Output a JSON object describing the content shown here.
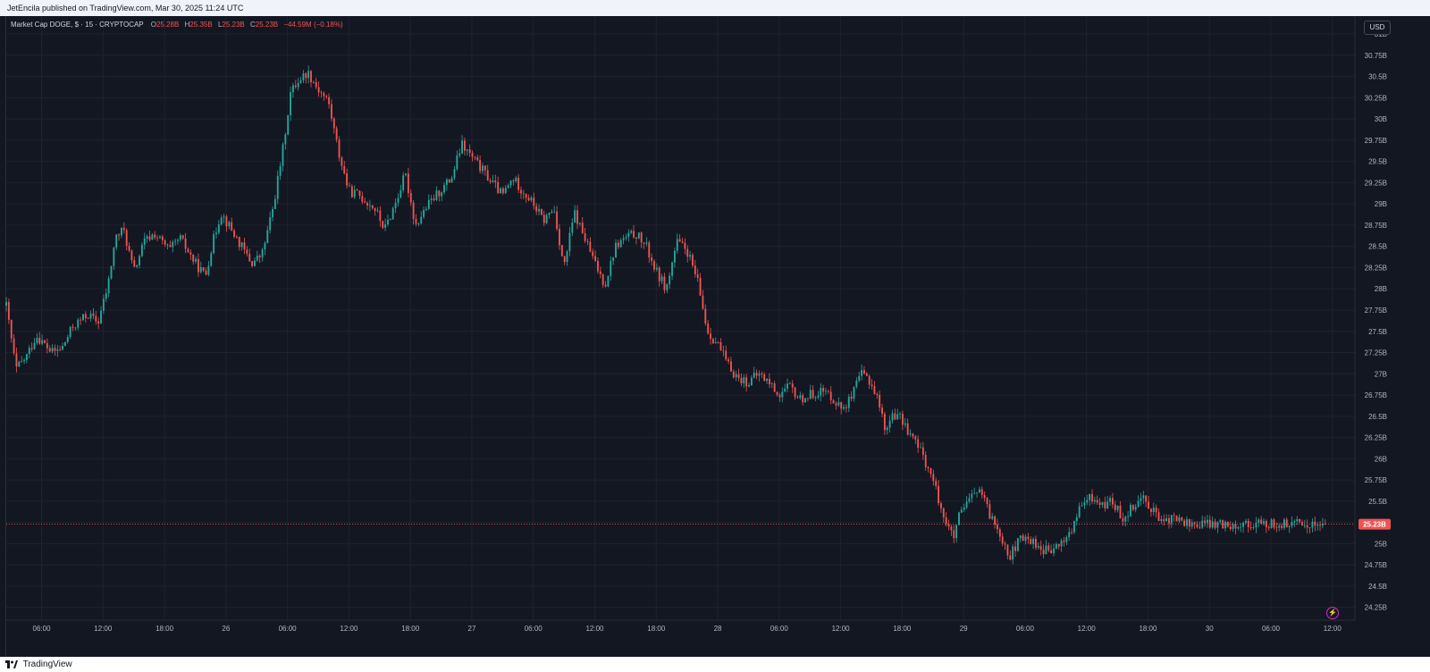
{
  "header": {
    "published_text": "JetEncila published on TradingView.com, Mar 30, 2025 11:24 UTC"
  },
  "legend": {
    "symbol": "Market Cap DOGE, $ · 15 · CRYPTOCAP",
    "o_label": "O",
    "o_value": "25.28B",
    "h_label": "H",
    "h_value": "25.35B",
    "l_label": "L",
    "l_value": "25.23B",
    "c_label": "C",
    "c_value": "25.23B",
    "change": "−44.59M (−0.18%)"
  },
  "currency": "USD",
  "footer": {
    "brand": "TradingView"
  },
  "colors": {
    "background": "#131722",
    "up": "#26a69a",
    "down": "#ef5350",
    "grid": "#1e222d",
    "text": "#b2b5be"
  },
  "chart_data": {
    "type": "candlestick",
    "series_name": "Market Cap DOGE, $",
    "interval": "15",
    "ylim": [
      24.1,
      31.2
    ],
    "y_ticks": [
      24.25,
      24.5,
      24.75,
      25,
      25.25,
      25.5,
      25.75,
      26,
      26.25,
      26.5,
      26.75,
      27,
      27.25,
      27.5,
      27.75,
      28,
      28.25,
      28.5,
      28.75,
      29,
      29.25,
      29.5,
      29.75,
      30,
      30.25,
      30.5,
      30.75,
      31
    ],
    "y_tick_labels": [
      "24.25B",
      "24.5B",
      "24.75B",
      "25B",
      "25.25B",
      "25.5B",
      "25.75B",
      "26B",
      "26.25B",
      "26.5B",
      "26.75B",
      "27B",
      "27.25B",
      "27.5B",
      "27.75B",
      "28B",
      "28.25B",
      "28.5B",
      "28.75B",
      "29B",
      "29.25B",
      "29.5B",
      "29.75B",
      "30B",
      "30.25B",
      "30.5B",
      "30.75B",
      "31B"
    ],
    "x_ticks": [
      {
        "label": "06:00",
        "t": 6
      },
      {
        "label": "12:00",
        "t": 12
      },
      {
        "label": "18:00",
        "t": 18
      },
      {
        "label": "26",
        "t": 24
      },
      {
        "label": "06:00",
        "t": 30
      },
      {
        "label": "12:00",
        "t": 36
      },
      {
        "label": "18:00",
        "t": 42
      },
      {
        "label": "27",
        "t": 48
      },
      {
        "label": "06:00",
        "t": 54
      },
      {
        "label": "12:00",
        "t": 60
      },
      {
        "label": "18:00",
        "t": 66
      },
      {
        "label": "28",
        "t": 72
      },
      {
        "label": "06:00",
        "t": 78
      },
      {
        "label": "12:00",
        "t": 84
      },
      {
        "label": "18:00",
        "t": 90
      },
      {
        "label": "29",
        "t": 96
      },
      {
        "label": "06:00",
        "t": 102
      },
      {
        "label": "12:00",
        "t": 108
      },
      {
        "label": "18:00",
        "t": 114
      },
      {
        "label": "30",
        "t": 120
      },
      {
        "label": "06:00",
        "t": 126
      },
      {
        "label": "12:00",
        "t": 132
      }
    ],
    "x_range_hours": [
      2.55,
      134.2
    ],
    "last_time_hours": 131.5,
    "last_price": 25.23,
    "last_price_label": "25.23B",
    "anchors": [
      [
        2.55,
        27.8
      ],
      [
        3.5,
        27.05
      ],
      [
        4.5,
        27.2
      ],
      [
        5.5,
        27.45
      ],
      [
        7,
        27.25
      ],
      [
        8,
        27.3
      ],
      [
        9,
        27.55
      ],
      [
        10.5,
        27.7
      ],
      [
        11.5,
        27.6
      ],
      [
        12.5,
        28.05
      ],
      [
        13.2,
        28.6
      ],
      [
        14,
        28.7
      ],
      [
        15,
        28.2
      ],
      [
        16,
        28.55
      ],
      [
        17,
        28.65
      ],
      [
        18.5,
        28.45
      ],
      [
        19.5,
        28.6
      ],
      [
        21,
        28.3
      ],
      [
        22,
        28.15
      ],
      [
        22.5,
        28.45
      ],
      [
        23.5,
        28.9
      ],
      [
        24.5,
        28.7
      ],
      [
        25.5,
        28.5
      ],
      [
        26.5,
        28.3
      ],
      [
        27.5,
        28.4
      ],
      [
        28.5,
        28.9
      ],
      [
        29.5,
        29.6
      ],
      [
        30.3,
        30.3
      ],
      [
        31,
        30.45
      ],
      [
        32,
        30.55
      ],
      [
        33,
        30.35
      ],
      [
        34,
        30.2
      ],
      [
        35,
        29.6
      ],
      [
        36,
        29.15
      ],
      [
        37,
        29.1
      ],
      [
        38.5,
        28.95
      ],
      [
        39.5,
        28.7
      ],
      [
        40.5,
        29.0
      ],
      [
        41.5,
        29.35
      ],
      [
        42.5,
        28.75
      ],
      [
        43.5,
        28.95
      ],
      [
        44.5,
        29.1
      ],
      [
        46,
        29.3
      ],
      [
        47,
        29.7
      ],
      [
        48,
        29.55
      ],
      [
        49,
        29.4
      ],
      [
        50,
        29.25
      ],
      [
        51,
        29.1
      ],
      [
        52,
        29.3
      ],
      [
        53,
        29.15
      ],
      [
        54,
        29.0
      ],
      [
        55,
        28.8
      ],
      [
        56,
        28.95
      ],
      [
        57,
        28.25
      ],
      [
        58,
        28.9
      ],
      [
        59,
        28.6
      ],
      [
        60,
        28.3
      ],
      [
        61,
        28.05
      ],
      [
        62,
        28.5
      ],
      [
        63,
        28.6
      ],
      [
        64,
        28.65
      ],
      [
        65,
        28.5
      ],
      [
        66,
        28.2
      ],
      [
        67,
        28.0
      ],
      [
        68,
        28.55
      ],
      [
        69,
        28.45
      ],
      [
        70,
        28.1
      ],
      [
        71,
        27.5
      ],
      [
        72,
        27.35
      ],
      [
        73,
        27.1
      ],
      [
        74,
        26.95
      ],
      [
        75,
        26.9
      ],
      [
        76,
        27.0
      ],
      [
        77,
        26.9
      ],
      [
        78,
        26.75
      ],
      [
        79,
        26.85
      ],
      [
        80,
        26.7
      ],
      [
        81,
        26.75
      ],
      [
        82,
        26.8
      ],
      [
        83,
        26.75
      ],
      [
        84,
        26.6
      ],
      [
        85,
        26.7
      ],
      [
        86,
        27.0
      ],
      [
        86.7,
        26.95
      ],
      [
        87.5,
        26.75
      ],
      [
        88.5,
        26.3
      ],
      [
        89,
        26.55
      ],
      [
        90,
        26.45
      ],
      [
        91,
        26.25
      ],
      [
        92,
        26.05
      ],
      [
        93,
        25.75
      ],
      [
        94,
        25.35
      ],
      [
        95,
        25.05
      ],
      [
        95.5,
        25.3
      ],
      [
        96.5,
        25.5
      ],
      [
        97.5,
        25.65
      ],
      [
        98.5,
        25.35
      ],
      [
        99.5,
        25.15
      ],
      [
        100.5,
        24.85
      ],
      [
        101.5,
        25.05
      ],
      [
        102.5,
        25.05
      ],
      [
        103.5,
        24.95
      ],
      [
        104.5,
        24.9
      ],
      [
        105.5,
        25.0
      ],
      [
        106.5,
        25.15
      ],
      [
        107.5,
        25.45
      ],
      [
        108.5,
        25.55
      ],
      [
        109.5,
        25.45
      ],
      [
        110.5,
        25.5
      ],
      [
        111.5,
        25.3
      ],
      [
        112.5,
        25.45
      ],
      [
        113.5,
        25.55
      ],
      [
        114.5,
        25.4
      ],
      [
        115.5,
        25.2
      ],
      [
        116,
        25.3
      ],
      [
        117,
        25.28
      ],
      [
        118,
        25.23
      ]
    ]
  }
}
